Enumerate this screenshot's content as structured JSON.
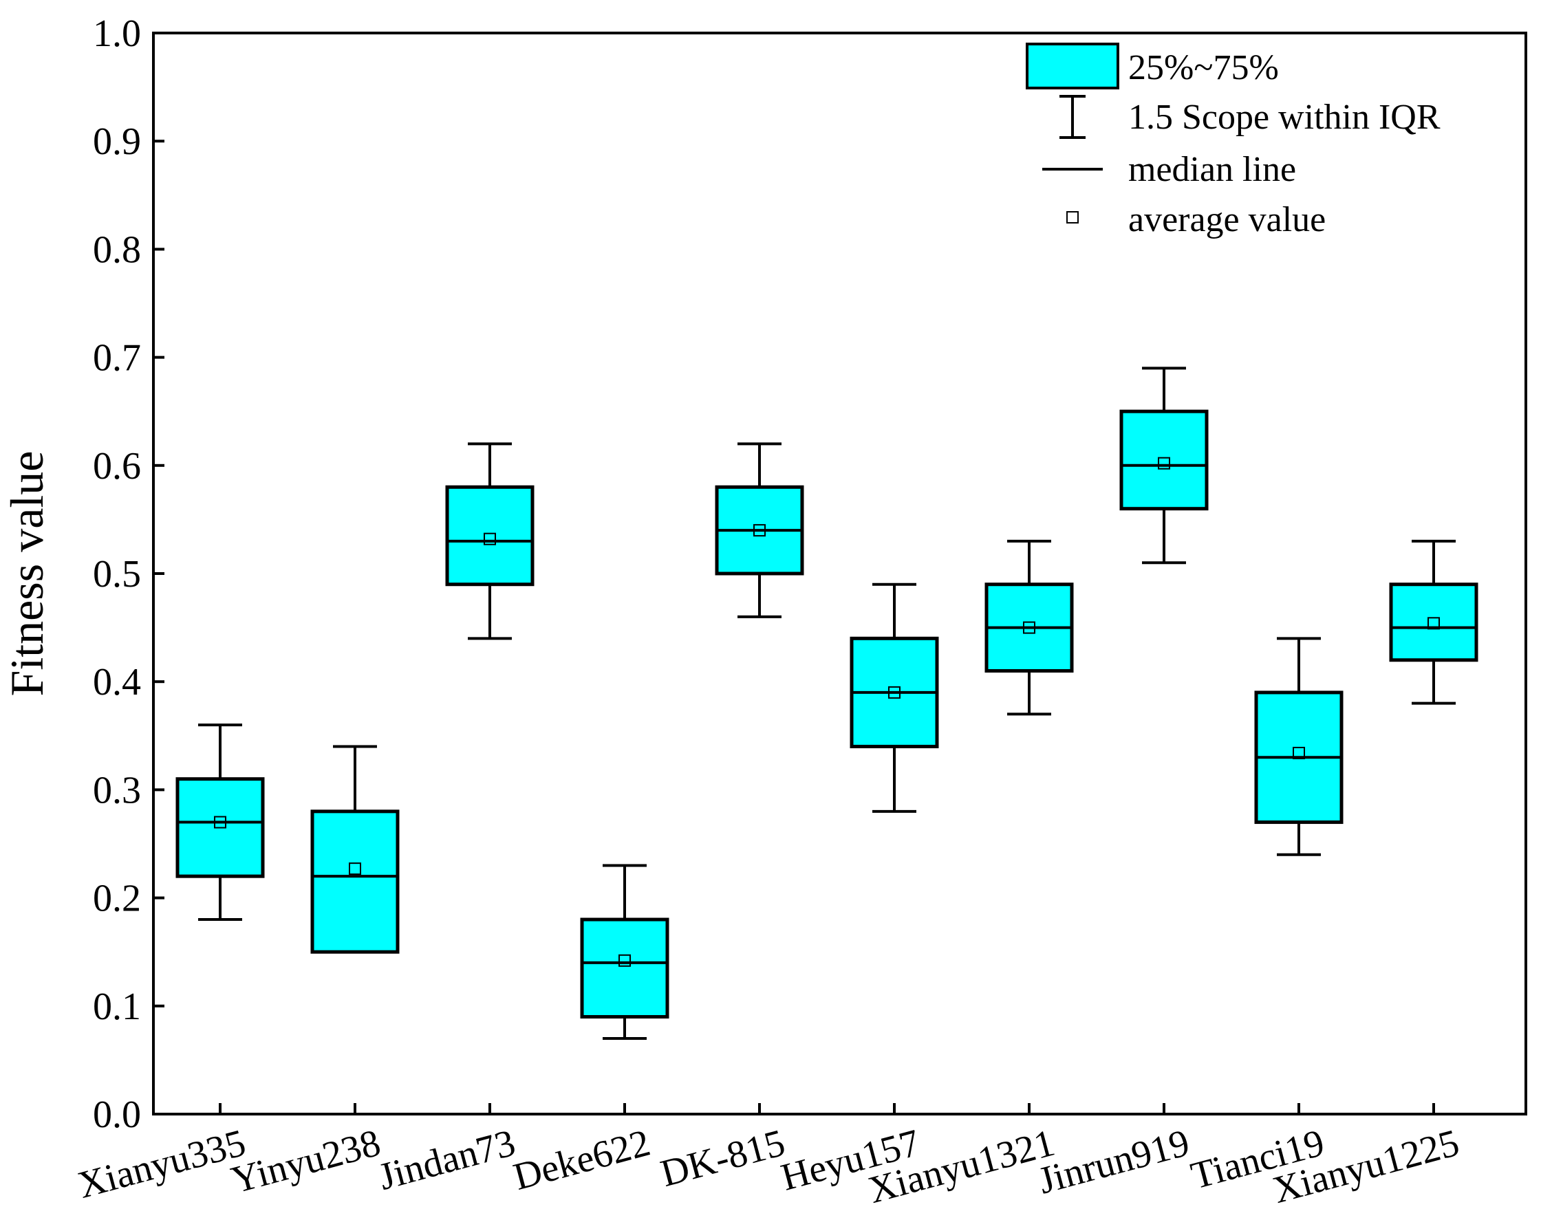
{
  "chart_data": {
    "type": "box",
    "ylabel": "Fitness value",
    "xlabel": "",
    "ylim": [
      0.0,
      1.0
    ],
    "y_ticks": [
      "0.0",
      "0.1",
      "0.2",
      "0.3",
      "0.4",
      "0.5",
      "0.6",
      "0.7",
      "0.8",
      "0.9",
      "1.0"
    ],
    "categories": [
      "Xianyu335",
      "Yinyu238",
      "Jindan73",
      "Deke622",
      "DK-815",
      "Heyu157",
      "Xianyu1321",
      "Jinrun919",
      "Tianci19",
      "Xianyu1225"
    ],
    "boxes": [
      {
        "whisker_low": 0.18,
        "q1": 0.22,
        "median": 0.27,
        "q3": 0.31,
        "whisker_high": 0.36,
        "mean": 0.27
      },
      {
        "whisker_low": 0.15,
        "q1": 0.15,
        "median": 0.22,
        "q3": 0.28,
        "whisker_high": 0.34,
        "mean": 0.227
      },
      {
        "whisker_low": 0.44,
        "q1": 0.49,
        "median": 0.53,
        "q3": 0.58,
        "whisker_high": 0.62,
        "mean": 0.532
      },
      {
        "whisker_low": 0.07,
        "q1": 0.09,
        "median": 0.14,
        "q3": 0.18,
        "whisker_high": 0.23,
        "mean": 0.142
      },
      {
        "whisker_low": 0.46,
        "q1": 0.5,
        "median": 0.54,
        "q3": 0.58,
        "whisker_high": 0.62,
        "mean": 0.54
      },
      {
        "whisker_low": 0.28,
        "q1": 0.34,
        "median": 0.39,
        "q3": 0.44,
        "whisker_high": 0.49,
        "mean": 0.39
      },
      {
        "whisker_low": 0.37,
        "q1": 0.41,
        "median": 0.45,
        "q3": 0.49,
        "whisker_high": 0.53,
        "mean": 0.45
      },
      {
        "whisker_low": 0.51,
        "q1": 0.56,
        "median": 0.6,
        "q3": 0.65,
        "whisker_high": 0.69,
        "mean": 0.602
      },
      {
        "whisker_low": 0.24,
        "q1": 0.27,
        "median": 0.33,
        "q3": 0.39,
        "whisker_high": 0.44,
        "mean": 0.334
      },
      {
        "whisker_low": 0.38,
        "q1": 0.42,
        "median": 0.45,
        "q3": 0.49,
        "whisker_high": 0.53,
        "mean": 0.454
      }
    ],
    "legend": {
      "position": "top-right",
      "entries": [
        "25%~75%",
        "1.5 Scope within IQR",
        "median line",
        "average value"
      ]
    },
    "colors": {
      "box_fill": "#00FFFF",
      "stroke": "#000000",
      "background": "#FFFFFF"
    }
  }
}
